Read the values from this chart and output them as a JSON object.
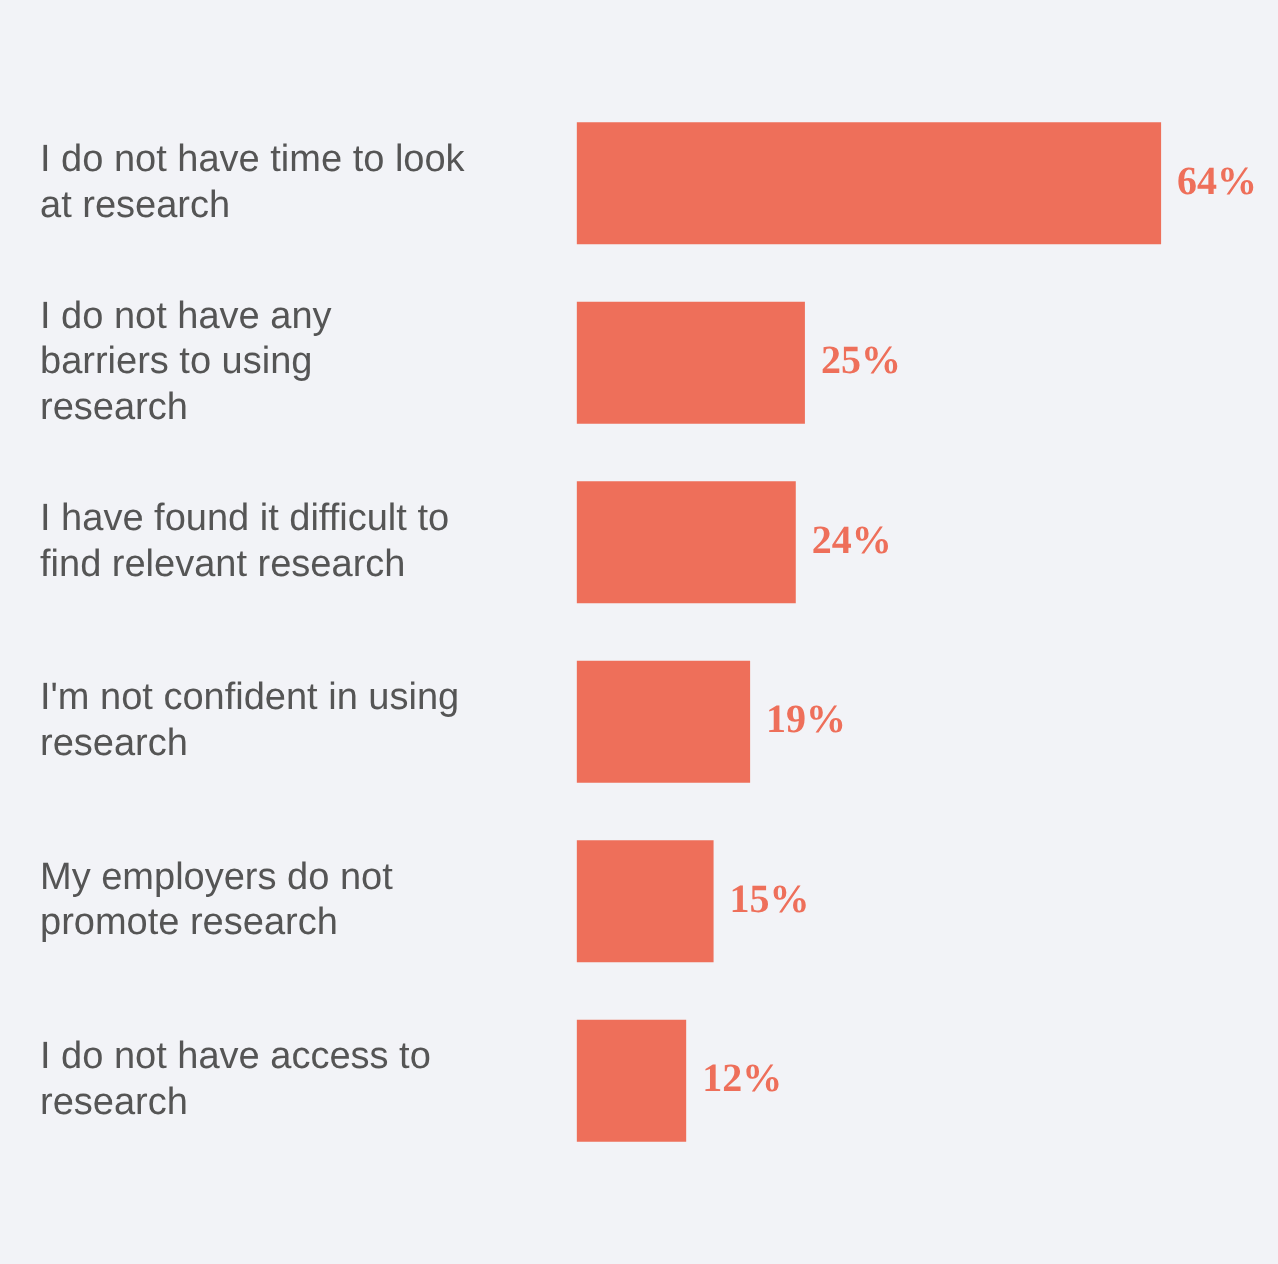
{
  "chart_data": {
    "type": "bar",
    "orientation": "horizontal",
    "categories": [
      "I do not have time to look at research",
      "I do not have any barriers to using research",
      "I have found it difficult to find relevant research",
      "I'm not confident in using research",
      "My employers do not promote research",
      "I do not have access to research"
    ],
    "values": [
      64,
      25,
      24,
      19,
      15,
      12
    ],
    "value_labels": [
      "64%",
      "25%",
      "24%",
      "19%",
      "15%",
      "12%"
    ],
    "color": "#ee6f5a",
    "legend": false
  }
}
